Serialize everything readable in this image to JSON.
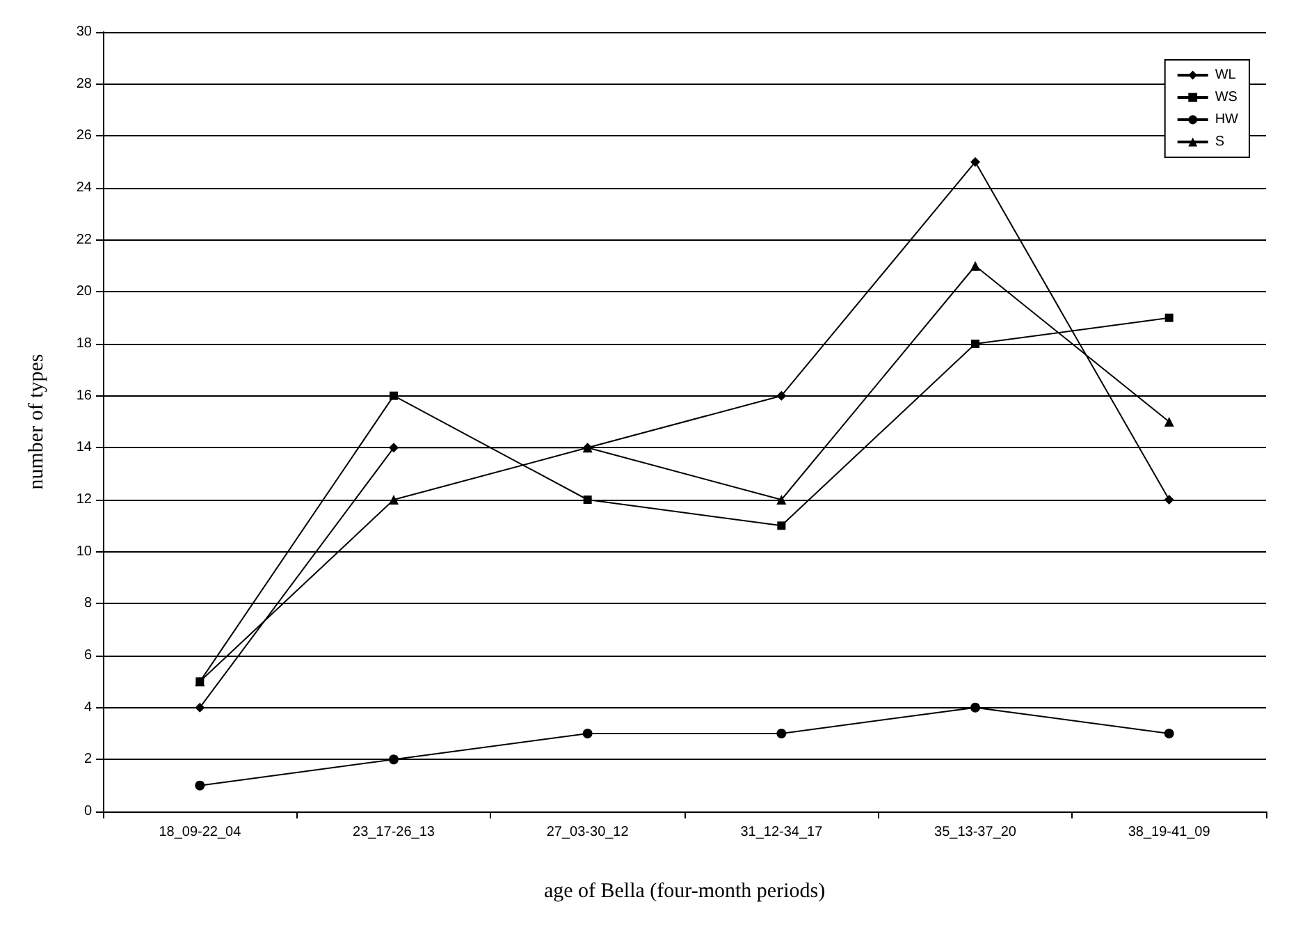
{
  "chart_data": {
    "type": "line",
    "xlabel": "age of Bella (four-month periods)",
    "ylabel": "number of types",
    "categories": [
      "18_09-22_04",
      "23_17-26_13",
      "27_03-30_12",
      "31_12-34_17",
      "35_13-37_20",
      "38_19-41_09"
    ],
    "series": [
      {
        "name": "WL",
        "color": "#000000",
        "marker": "diamond",
        "values": [
          4,
          14,
          14,
          16,
          25,
          12
        ]
      },
      {
        "name": "WS",
        "color": "#000000",
        "marker": "square",
        "values": [
          5,
          16,
          12,
          11,
          18,
          19
        ]
      },
      {
        "name": "HW",
        "color": "#000000",
        "marker": "circle",
        "values": [
          1,
          2,
          3,
          3,
          4,
          3
        ]
      },
      {
        "name": "S",
        "color": "#000000",
        "marker": "triangle",
        "values": [
          5,
          12,
          14,
          12,
          21,
          15
        ]
      }
    ],
    "ylim": [
      0,
      30
    ],
    "yticks": [
      0,
      2,
      4,
      6,
      8,
      10,
      12,
      14,
      16,
      18,
      20,
      22,
      24,
      26,
      28,
      30
    ],
    "grid": "y",
    "legend": "top right",
    "line_style": "solid"
  }
}
